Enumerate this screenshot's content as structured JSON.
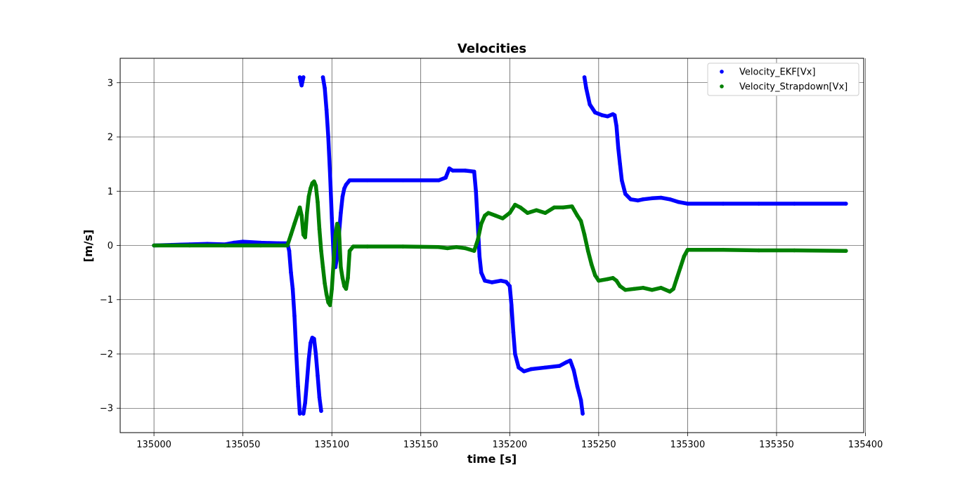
{
  "chart_data": {
    "type": "scatter",
    "title": "Velocities",
    "xlabel": "time [s]",
    "ylabel": "[m/s]",
    "xlim": [
      134981,
      135399
    ],
    "ylim": [
      -3.45,
      3.45
    ],
    "xticks": [
      135000,
      135050,
      135100,
      135150,
      135200,
      135250,
      135300,
      135350,
      135400
    ],
    "yticks": [
      -3,
      -2,
      -1,
      0,
      1,
      2,
      3
    ],
    "grid": true,
    "legend": "top-right",
    "series": [
      {
        "name": "Velocity_EKF[Vx]",
        "color": "#0000ff",
        "points": [
          [
            135000,
            0.0
          ],
          [
            135010,
            0.01
          ],
          [
            135020,
            0.02
          ],
          [
            135030,
            0.03
          ],
          [
            135040,
            0.02
          ],
          [
            135045,
            0.05
          ],
          [
            135050,
            0.07
          ],
          [
            135060,
            0.05
          ],
          [
            135070,
            0.04
          ],
          [
            135075,
            0.04
          ],
          [
            135076,
            -0.1
          ],
          [
            135077,
            -0.5
          ],
          [
            135078,
            -0.8
          ],
          [
            135079,
            -1.3
          ],
          [
            135080,
            -2.0
          ],
          [
            135081,
            -2.6
          ],
          [
            135082,
            -3.1
          ],
          [
            135083,
            null
          ],
          [
            135082,
            3.1
          ],
          [
            135083,
            2.95
          ],
          [
            135084,
            3.1
          ],
          [
            135085,
            null
          ],
          [
            135084,
            -3.1
          ],
          [
            135085,
            -2.9
          ],
          [
            135086,
            -2.5
          ],
          [
            135087,
            -2.1
          ],
          [
            135088,
            -1.8
          ],
          [
            135089,
            -1.7
          ],
          [
            135090,
            -1.72
          ],
          [
            135091,
            -2.0
          ],
          [
            135092,
            -2.4
          ],
          [
            135093,
            -2.8
          ],
          [
            135094,
            -3.05
          ],
          [
            135095,
            null
          ],
          [
            135095,
            3.1
          ],
          [
            135096,
            2.9
          ],
          [
            135097,
            2.5
          ],
          [
            135098,
            2.0
          ],
          [
            135099,
            1.3
          ],
          [
            135100,
            0.5
          ],
          [
            135101,
            -0.2
          ],
          [
            135102,
            -0.4
          ],
          [
            135103,
            -0.2
          ],
          [
            135104,
            0.2
          ],
          [
            135105,
            0.6
          ],
          [
            135106,
            0.9
          ],
          [
            135107,
            1.05
          ],
          [
            135108,
            1.12
          ],
          [
            135110,
            1.2
          ],
          [
            135120,
            1.2
          ],
          [
            135140,
            1.2
          ],
          [
            135160,
            1.2
          ],
          [
            135164,
            1.25
          ],
          [
            135166,
            1.42
          ],
          [
            135168,
            1.38
          ],
          [
            135175,
            1.38
          ],
          [
            135180,
            1.36
          ],
          [
            135181,
            1.0
          ],
          [
            135182,
            0.4
          ],
          [
            135183,
            -0.2
          ],
          [
            135184,
            -0.5
          ],
          [
            135186,
            -0.65
          ],
          [
            135190,
            -0.68
          ],
          [
            135195,
            -0.65
          ],
          [
            135198,
            -0.67
          ],
          [
            135200,
            -0.75
          ],
          [
            135201,
            -1.1
          ],
          [
            135202,
            -1.6
          ],
          [
            135203,
            -2.0
          ],
          [
            135205,
            -2.25
          ],
          [
            135208,
            -2.32
          ],
          [
            135212,
            -2.28
          ],
          [
            135220,
            -2.25
          ],
          [
            135228,
            -2.22
          ],
          [
            135232,
            -2.15
          ],
          [
            135234,
            -2.12
          ],
          [
            135236,
            -2.3
          ],
          [
            135238,
            -2.6
          ],
          [
            135240,
            -2.85
          ],
          [
            135241,
            -3.1
          ],
          [
            135242,
            null
          ],
          [
            135242,
            3.1
          ],
          [
            135243,
            2.9
          ],
          [
            135245,
            2.6
          ],
          [
            135248,
            2.45
          ],
          [
            135252,
            2.4
          ],
          [
            135255,
            2.38
          ],
          [
            135258,
            2.42
          ],
          [
            135259,
            2.4
          ],
          [
            135260,
            2.2
          ],
          [
            135261,
            1.8
          ],
          [
            135262,
            1.5
          ],
          [
            135263,
            1.2
          ],
          [
            135265,
            0.95
          ],
          [
            135268,
            0.85
          ],
          [
            135272,
            0.83
          ],
          [
            135275,
            0.85
          ],
          [
            135280,
            0.87
          ],
          [
            135285,
            0.88
          ],
          [
            135290,
            0.85
          ],
          [
            135295,
            0.8
          ],
          [
            135300,
            0.77
          ],
          [
            135320,
            0.77
          ],
          [
            135340,
            0.77
          ],
          [
            135360,
            0.77
          ],
          [
            135389,
            0.77
          ]
        ]
      },
      {
        "name": "Velocity_Strapdown[Vx]",
        "color": "#008000",
        "points": [
          [
            135000,
            0.0
          ],
          [
            135020,
            0.0
          ],
          [
            135040,
            0.0
          ],
          [
            135060,
            0.0
          ],
          [
            135075,
            0.0
          ],
          [
            135077,
            0.2
          ],
          [
            135079,
            0.4
          ],
          [
            135081,
            0.6
          ],
          [
            135082,
            0.7
          ],
          [
            135083,
            0.55
          ],
          [
            135084,
            0.2
          ],
          [
            135085,
            0.15
          ],
          [
            135086,
            0.6
          ],
          [
            135087,
            0.9
          ],
          [
            135088,
            1.05
          ],
          [
            135089,
            1.15
          ],
          [
            135090,
            1.18
          ],
          [
            135091,
            1.1
          ],
          [
            135092,
            0.8
          ],
          [
            135093,
            0.3
          ],
          [
            135094,
            -0.1
          ],
          [
            135095,
            -0.4
          ],
          [
            135096,
            -0.7
          ],
          [
            135097,
            -0.9
          ],
          [
            135098,
            -1.05
          ],
          [
            135099,
            -1.1
          ],
          [
            135100,
            -0.8
          ],
          [
            135101,
            -0.3
          ],
          [
            135102,
            0.2
          ],
          [
            135103,
            0.4
          ],
          [
            135104,
            0.3
          ],
          [
            135105,
            -0.4
          ],
          [
            135106,
            -0.6
          ],
          [
            135107,
            -0.75
          ],
          [
            135108,
            -0.8
          ],
          [
            135109,
            -0.6
          ],
          [
            135110,
            -0.1
          ],
          [
            135112,
            -0.02
          ],
          [
            135120,
            -0.02
          ],
          [
            135140,
            -0.02
          ],
          [
            135160,
            -0.03
          ],
          [
            135165,
            -0.05
          ],
          [
            135170,
            -0.03
          ],
          [
            135175,
            -0.05
          ],
          [
            135180,
            -0.1
          ],
          [
            135182,
            0.1
          ],
          [
            135184,
            0.4
          ],
          [
            135186,
            0.55
          ],
          [
            135188,
            0.6
          ],
          [
            135192,
            0.55
          ],
          [
            135196,
            0.5
          ],
          [
            135200,
            0.6
          ],
          [
            135203,
            0.75
          ],
          [
            135206,
            0.7
          ],
          [
            135210,
            0.6
          ],
          [
            135215,
            0.65
          ],
          [
            135220,
            0.6
          ],
          [
            135225,
            0.7
          ],
          [
            135230,
            0.7
          ],
          [
            135235,
            0.72
          ],
          [
            135238,
            0.55
          ],
          [
            135240,
            0.45
          ],
          [
            135242,
            0.2
          ],
          [
            135244,
            -0.1
          ],
          [
            135246,
            -0.35
          ],
          [
            135248,
            -0.55
          ],
          [
            135250,
            -0.65
          ],
          [
            135255,
            -0.62
          ],
          [
            135258,
            -0.6
          ],
          [
            135260,
            -0.65
          ],
          [
            135262,
            -0.75
          ],
          [
            135265,
            -0.82
          ],
          [
            135270,
            -0.8
          ],
          [
            135275,
            -0.78
          ],
          [
            135280,
            -0.82
          ],
          [
            135285,
            -0.78
          ],
          [
            135290,
            -0.85
          ],
          [
            135292,
            -0.8
          ],
          [
            135294,
            -0.6
          ],
          [
            135296,
            -0.4
          ],
          [
            135298,
            -0.2
          ],
          [
            135300,
            -0.08
          ],
          [
            135320,
            -0.08
          ],
          [
            135340,
            -0.09
          ],
          [
            135360,
            -0.09
          ],
          [
            135389,
            -0.1
          ]
        ]
      }
    ]
  }
}
